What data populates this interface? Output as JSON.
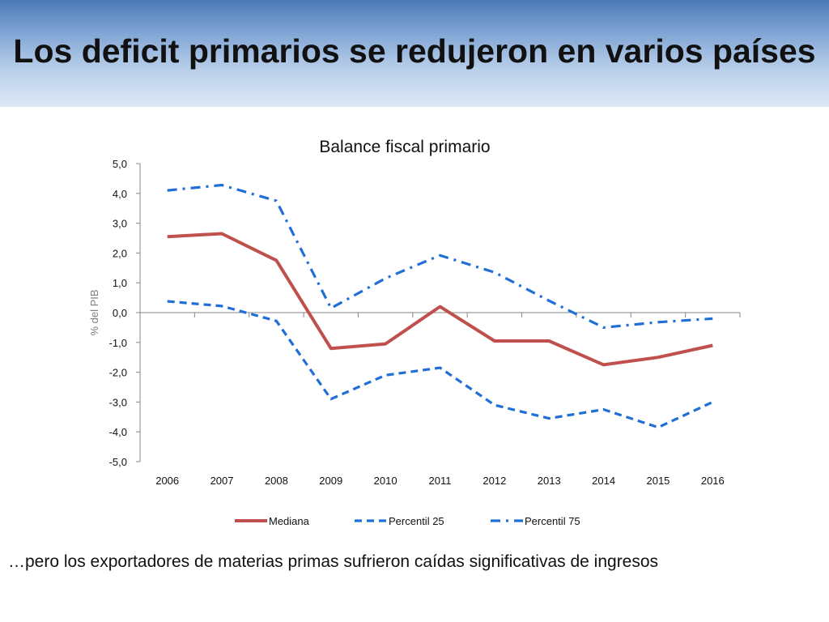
{
  "slide": {
    "title": "Los deficit primarios se redujeron en varios países",
    "footnote": "…pero los exportadores de materias primas sufrieron caídas significativas de ingresos"
  },
  "chart_data": {
    "type": "line",
    "title": "Balance fiscal primario",
    "ylabel": "% del PIB",
    "xlabel": "",
    "categories": [
      "2006",
      "2007",
      "2008",
      "2009",
      "2010",
      "2011",
      "2012",
      "2013",
      "2014",
      "2015",
      "2016"
    ],
    "ylim": [
      -5,
      5
    ],
    "yticks": [
      "5,0",
      "4,0",
      "3,0",
      "2,0",
      "1,0",
      "0,0",
      "-1,0",
      "-2,0",
      "-3,0",
      "-4,0",
      "-5,0"
    ],
    "grid": false,
    "legend_position": "bottom",
    "series": [
      {
        "name": "Mediana",
        "style": "solid",
        "color": "#c0504d",
        "values": [
          2.55,
          2.65,
          1.75,
          -1.2,
          -1.05,
          0.2,
          -0.95,
          -0.95,
          -1.75,
          -1.5,
          -1.1
        ]
      },
      {
        "name": "Percentil 25",
        "style": "dash",
        "color": "#1f6fd6",
        "values": [
          0.38,
          0.22,
          -0.28,
          -2.9,
          -2.1,
          -1.85,
          -3.1,
          -3.55,
          -3.25,
          -3.85,
          -3.0
        ]
      },
      {
        "name": "Percentil 75",
        "style": "dashdot",
        "color": "#1f6fd6",
        "values": [
          4.1,
          4.28,
          3.75,
          0.15,
          1.15,
          1.92,
          1.35,
          0.4,
          -0.5,
          -0.32,
          -0.2
        ]
      }
    ]
  }
}
